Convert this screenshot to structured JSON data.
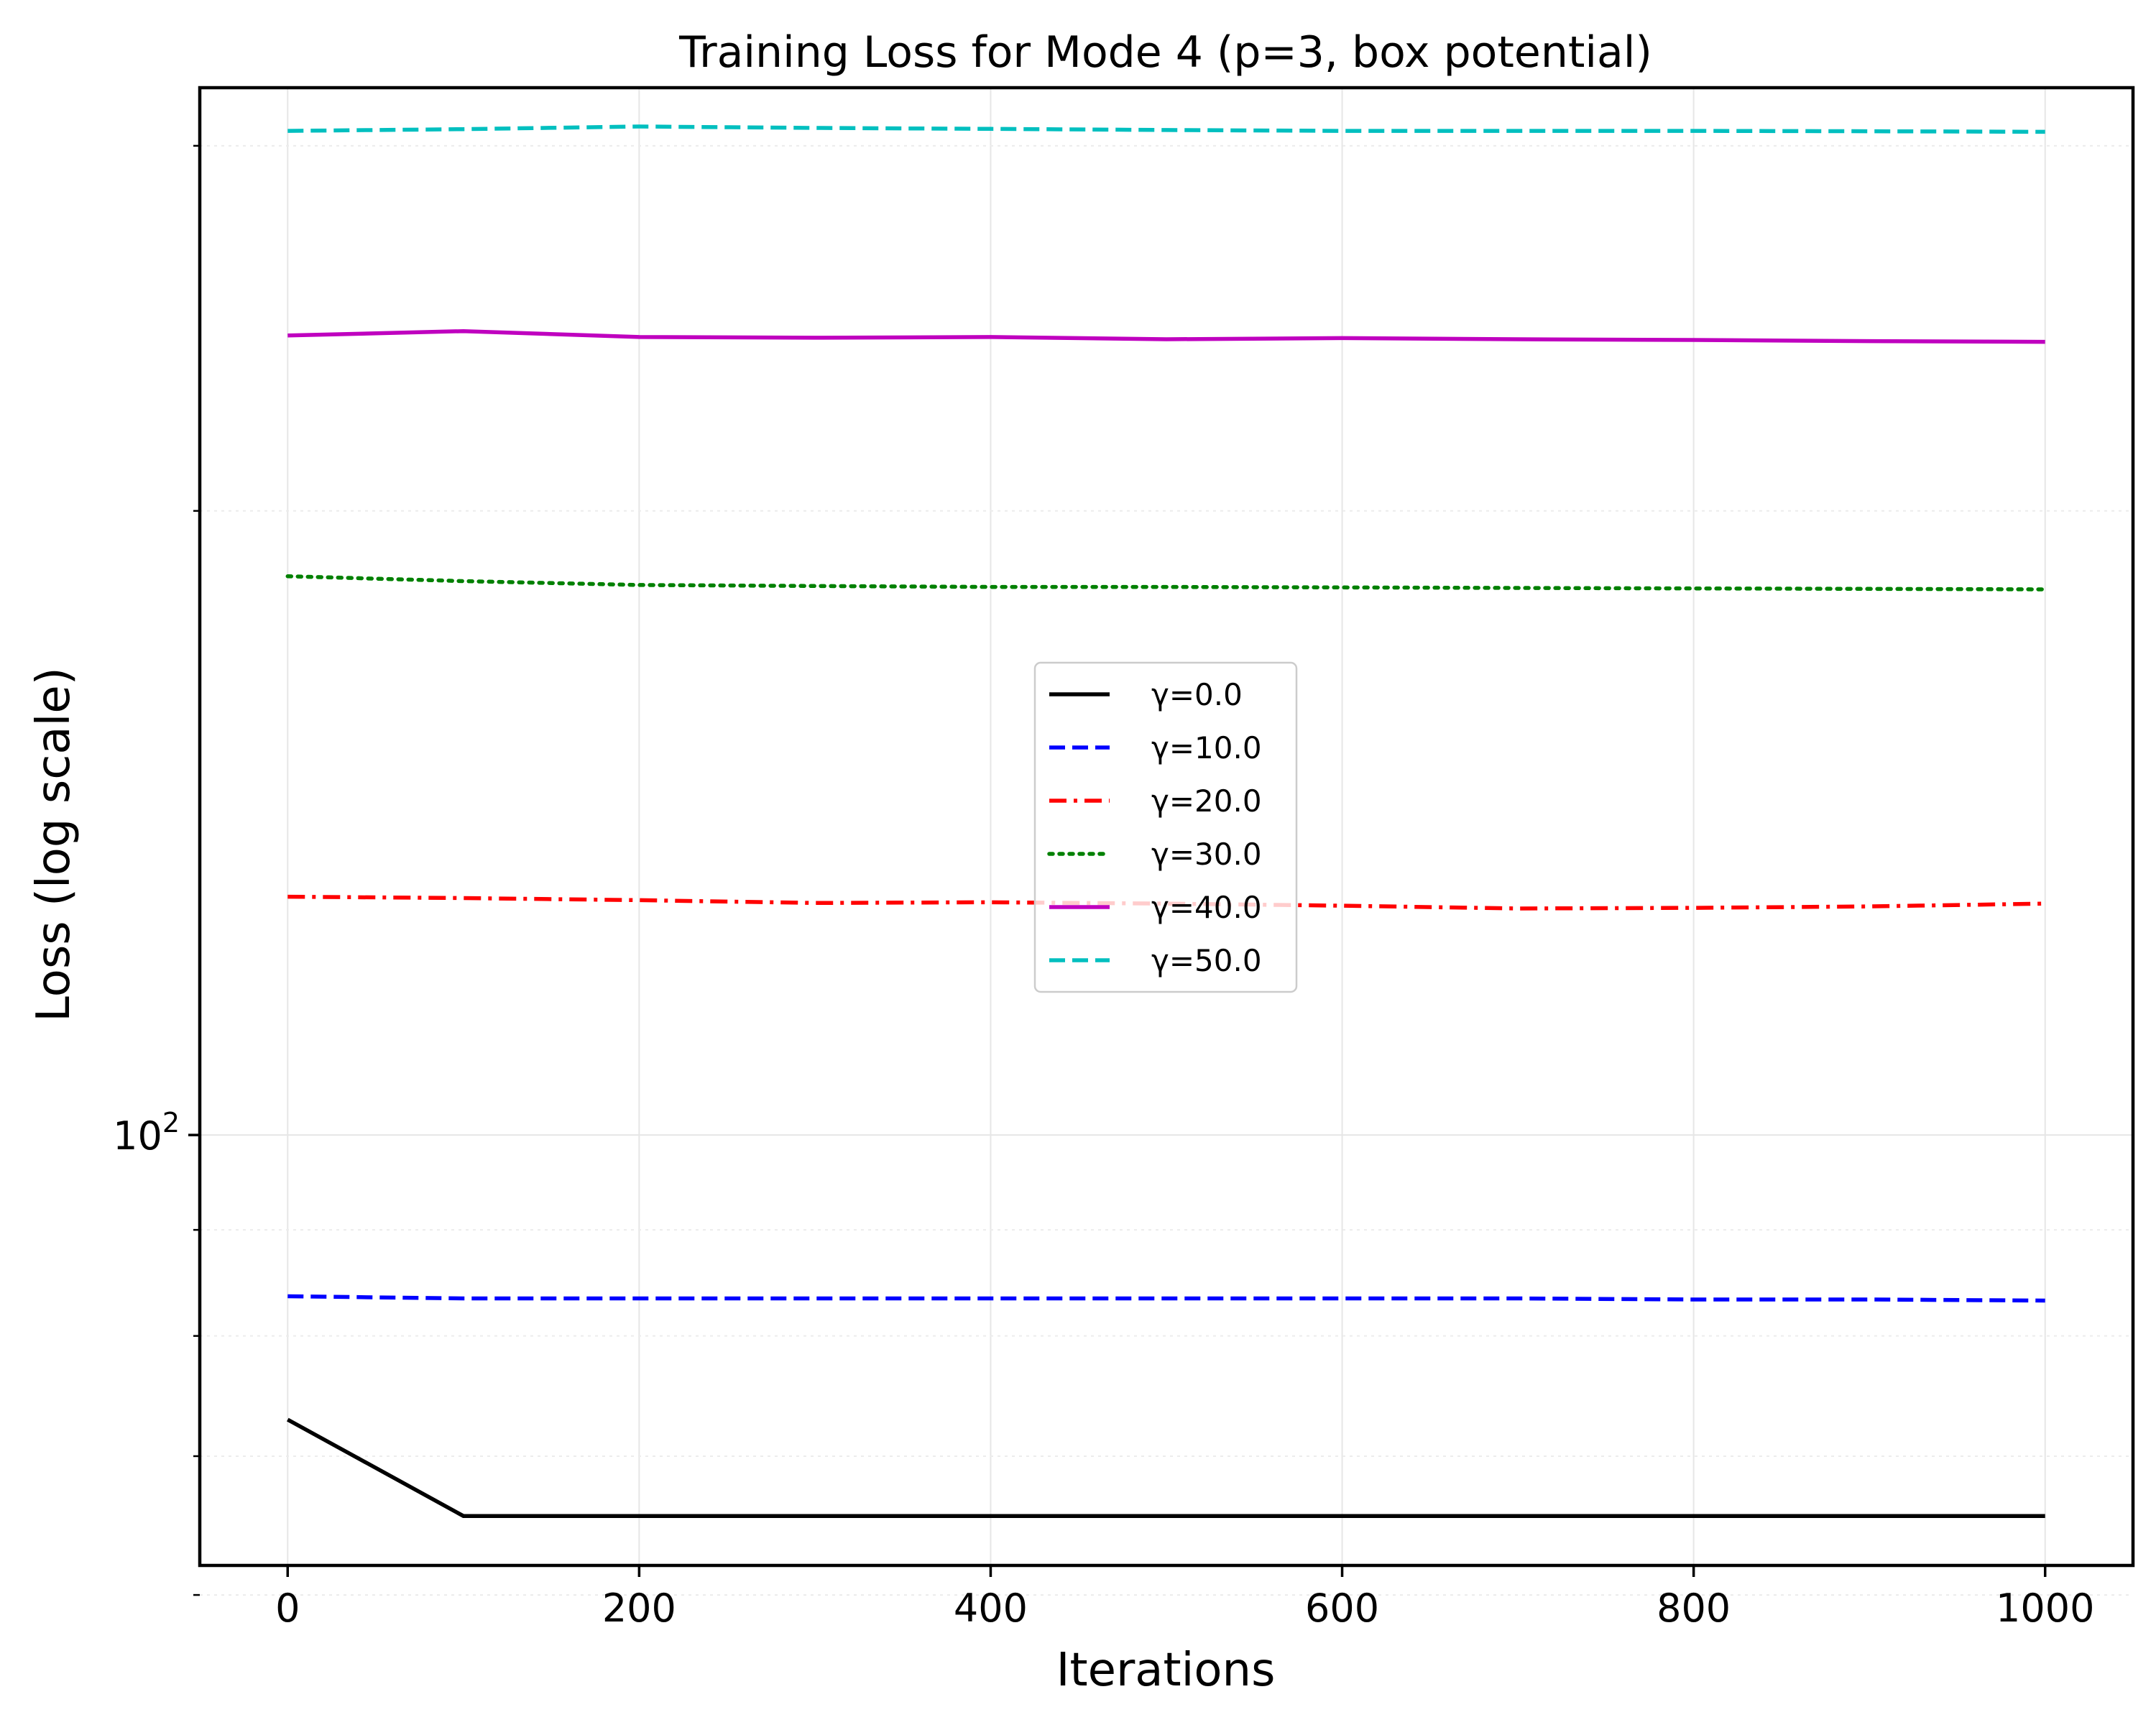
{
  "chart_data": {
    "type": "line",
    "title": "Training Loss for Mode 4 (p=3, box potential)",
    "xlabel": "Iterations",
    "ylabel": "Loss (log scale)",
    "xlim": [
      -50,
      1050
    ],
    "ylim": [
      62,
      320
    ],
    "yscale": "log",
    "grid": true,
    "legend_position": "center",
    "x_ticks": [
      {
        "value": 0,
        "label": "0"
      },
      {
        "value": 200,
        "label": "200"
      },
      {
        "value": 400,
        "label": "400"
      },
      {
        "value": 600,
        "label": "600"
      },
      {
        "value": 800,
        "label": "800"
      },
      {
        "value": 1000,
        "label": "1000"
      }
    ],
    "y_major_ticks": [
      {
        "value": 100,
        "base": "10",
        "exp": "2"
      }
    ],
    "y_minor_ticks": [
      60,
      70,
      80,
      90,
      200,
      300
    ],
    "x": [
      0,
      100,
      200,
      300,
      400,
      500,
      600,
      700,
      800,
      900,
      1000
    ],
    "series": [
      {
        "name": "γ=0.0",
        "color": "#000000",
        "dash": "solid",
        "values": [
          72.9,
          65.5,
          65.5,
          65.5,
          65.5,
          65.5,
          65.5,
          65.5,
          65.5,
          65.5,
          65.5
        ]
      },
      {
        "name": "γ=10.0",
        "color": "#0000ff",
        "dash": "dashed",
        "values": [
          83.6,
          83.4,
          83.4,
          83.4,
          83.4,
          83.4,
          83.4,
          83.4,
          83.3,
          83.3,
          83.2
        ]
      },
      {
        "name": "γ=20.0",
        "color": "#ff0000",
        "dash": "dashdot",
        "values": [
          130.3,
          130.1,
          129.8,
          129.4,
          129.5,
          129.3,
          129.0,
          128.6,
          128.7,
          128.9,
          129.3
        ]
      },
      {
        "name": "γ=30.0",
        "color": "#008000",
        "dash": "dotted",
        "values": [
          186.0,
          185.0,
          184.2,
          184.0,
          183.8,
          183.8,
          183.7,
          183.6,
          183.5,
          183.4,
          183.3
        ]
      },
      {
        "name": "γ=40.0",
        "color": "#bf00bf",
        "dash": "solid",
        "values": [
          243.0,
          244.2,
          242.6,
          242.4,
          242.6,
          242.0,
          242.3,
          242.0,
          241.8,
          241.5,
          241.3
        ]
      },
      {
        "name": "γ=50.0",
        "color": "#00bfbf",
        "dash": "dashed",
        "values": [
          305.0,
          305.6,
          306.5,
          306.0,
          305.7,
          305.3,
          305.0,
          305.0,
          305.0,
          304.9,
          304.7
        ]
      }
    ]
  }
}
